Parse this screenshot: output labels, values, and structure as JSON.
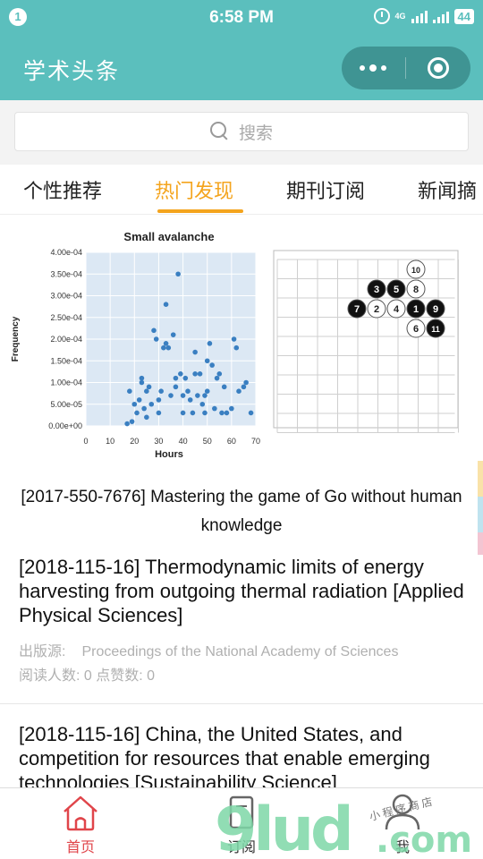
{
  "status_bar": {
    "notification_count": "1",
    "time": "6:58 PM",
    "network": "4G",
    "battery": "44"
  },
  "header": {
    "title": "学术头条"
  },
  "search": {
    "placeholder": "搜索"
  },
  "tabs": [
    {
      "label": "个性推荐",
      "active": false
    },
    {
      "label": "热门发现",
      "active": true
    },
    {
      "label": "期刊订阅",
      "active": false
    },
    {
      "label": "新闻摘",
      "active": false
    }
  ],
  "featured": {
    "caption_line1": "[2017-550-7676] Mastering the game of Go without human",
    "caption_line2": "knowledge"
  },
  "chart_data": {
    "type": "scatter",
    "title": "Small avalanche",
    "xlabel": "Hours",
    "ylabel": "Frequency",
    "xlim": [
      0,
      70
    ],
    "ylim": [
      0,
      0.0004
    ],
    "x_ticks": [
      "0",
      "10",
      "20",
      "30",
      "40",
      "50",
      "60",
      "70"
    ],
    "y_ticks": [
      "0.00e+00",
      "5.00e-05",
      "1.00e-04",
      "1.50e-04",
      "2.00e-04",
      "2.50e-04",
      "3.00e-04",
      "3.50e-04",
      "4.00e-04"
    ],
    "points": [
      [
        17,
        5e-06
      ],
      [
        19,
        1e-05
      ],
      [
        18,
        8e-05
      ],
      [
        20,
        5e-05
      ],
      [
        21,
        3e-05
      ],
      [
        22,
        6e-05
      ],
      [
        23,
        0.0001
      ],
      [
        23,
        0.00011
      ],
      [
        24,
        4e-05
      ],
      [
        25,
        2e-05
      ],
      [
        25,
        8e-05
      ],
      [
        26,
        9e-05
      ],
      [
        28,
        0.00022
      ],
      [
        29,
        0.0002
      ],
      [
        30,
        6e-05
      ],
      [
        31,
        8e-05
      ],
      [
        32,
        0.00018
      ],
      [
        33,
        0.00019
      ],
      [
        33,
        0.00028
      ],
      [
        34,
        0.00018
      ],
      [
        35,
        7e-05
      ],
      [
        36,
        0.00021
      ],
      [
        37,
        9e-05
      ],
      [
        37,
        0.00011
      ],
      [
        38,
        0.00035
      ],
      [
        39,
        0.00012
      ],
      [
        40,
        7e-05
      ],
      [
        40,
        3e-05
      ],
      [
        41,
        0.00011
      ],
      [
        42,
        8e-05
      ],
      [
        43,
        6e-05
      ],
      [
        44,
        3e-05
      ],
      [
        45,
        0.00017
      ],
      [
        45,
        0.00012
      ],
      [
        46,
        7e-05
      ],
      [
        47,
        0.00012
      ],
      [
        48,
        5e-05
      ],
      [
        49,
        7e-05
      ],
      [
        49,
        3e-05
      ],
      [
        50,
        0.00015
      ],
      [
        50,
        8e-05
      ],
      [
        51,
        0.00019
      ],
      [
        52,
        0.00014
      ],
      [
        53,
        4e-05
      ],
      [
        54,
        0.00011
      ],
      [
        56,
        3e-05
      ],
      [
        57,
        9e-05
      ],
      [
        58,
        3e-05
      ],
      [
        60,
        4e-05
      ],
      [
        61,
        0.0002
      ],
      [
        62,
        0.00018
      ],
      [
        63,
        8e-05
      ],
      [
        65,
        9e-05
      ],
      [
        66,
        0.0001
      ],
      [
        68,
        3e-05
      ],
      [
        30,
        3e-05
      ],
      [
        27,
        5e-05
      ],
      [
        55,
        0.00012
      ]
    ]
  },
  "go_board": {
    "stones": [
      {
        "col": 7,
        "row": 1,
        "color": "white",
        "num": "10"
      },
      {
        "col": 5,
        "row": 2,
        "color": "black",
        "num": "3"
      },
      {
        "col": 6,
        "row": 2,
        "color": "black",
        "num": "5"
      },
      {
        "col": 7,
        "row": 2,
        "color": "white",
        "num": "8"
      },
      {
        "col": 4,
        "row": 3,
        "color": "black",
        "num": "7"
      },
      {
        "col": 5,
        "row": 3,
        "color": "white",
        "num": "2"
      },
      {
        "col": 6,
        "row": 3,
        "color": "white",
        "num": "4"
      },
      {
        "col": 7,
        "row": 3,
        "color": "black",
        "num": "1"
      },
      {
        "col": 8,
        "row": 3,
        "color": "black",
        "num": "9"
      },
      {
        "col": 7,
        "row": 4,
        "color": "white",
        "num": "6"
      },
      {
        "col": 8,
        "row": 4,
        "color": "black",
        "num": "11"
      }
    ]
  },
  "articles": [
    {
      "title": "[2018-115-16] Thermodynamic limits of energy harvesting from outgoing thermal radiation [Applied Physical Sciences]",
      "source_label": "出版源:",
      "source_value": "Proceedings of the National Academy of Sciences",
      "stats": "阅读人数: 0 点赞数: 0"
    },
    {
      "title": "[2018-115-16] China, the United States, and competition for resources that enable emerging technologies [Sustainability Science]"
    }
  ],
  "bottom_nav": [
    {
      "label": "首页",
      "active": true
    },
    {
      "label": "订阅",
      "active": false
    },
    {
      "label": "我",
      "active": false
    }
  ],
  "watermark": {
    "text_main": "9lud",
    "text_com": ".com",
    "text_small": "小程序商店"
  },
  "colors": {
    "header_bg": "#5bbfbd",
    "accent": "#f4a41d",
    "nav_active": "#e0454a"
  }
}
